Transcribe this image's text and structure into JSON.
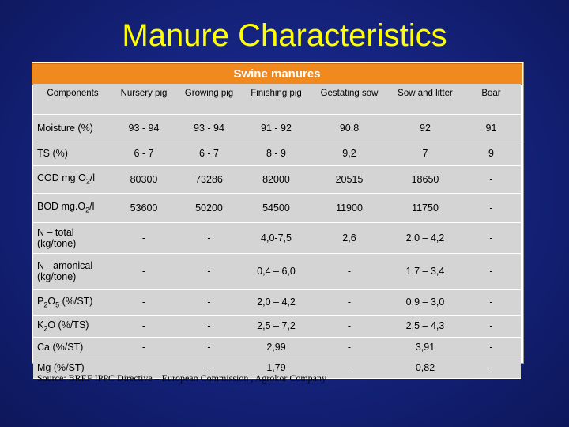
{
  "title": "Manure Characteristics",
  "banner": "Swine manures",
  "columns": [
    "Components",
    "Nursery pig",
    "Growing pig",
    "Finishing pig",
    "Gestating sow",
    "Sow and litter",
    "Boar"
  ],
  "rows": [
    {
      "label": "Moisture (%)",
      "values": [
        "93 - 94",
        "93 - 94",
        "91 - 92",
        "90,8",
        "92",
        "91"
      ]
    },
    {
      "label": "TS (%)",
      "values": [
        "6 - 7",
        "6 - 7",
        "8 - 9",
        "9,2",
        "7",
        "9"
      ]
    },
    {
      "label_parts": [
        "COD mg O",
        "2",
        "/l"
      ],
      "values": [
        "80300",
        "73286",
        "82000",
        "20515",
        "18650",
        "-"
      ]
    },
    {
      "label_parts": [
        "BOD mg.O",
        "2",
        "/l"
      ],
      "values": [
        "53600",
        "50200",
        "54500",
        "11900",
        "11750",
        "-"
      ]
    },
    {
      "label": "N – total (kg/tone)",
      "values": [
        "-",
        "-",
        "4,0-7,5",
        "2,6",
        "2,0 – 4,2",
        "-"
      ]
    },
    {
      "label": "N - amonical (kg/tone)",
      "values": [
        "-",
        "-",
        "0,4 – 6,0",
        "-",
        "1,7 – 3,4",
        "-"
      ]
    },
    {
      "label_parts": [
        "P",
        "2",
        "O",
        "5",
        " (%/ST)"
      ],
      "values": [
        "-",
        "-",
        "2,0 – 4,2",
        "-",
        "0,9 – 3,0",
        "-"
      ]
    },
    {
      "label_parts": [
        "K",
        "2",
        "O (%/TS)"
      ],
      "values": [
        "-",
        "-",
        "2,5 – 7,2",
        "-",
        "2,5 – 4,3",
        "-"
      ]
    },
    {
      "label": "Ca (%/ST)",
      "values": [
        "-",
        "-",
        "2,99",
        "-",
        "3,91",
        "-"
      ]
    },
    {
      "label": "Mg (%/ST)",
      "values": [
        "-",
        "-",
        "1,79",
        "-",
        "0,82",
        "-"
      ]
    }
  ],
  "source": "Source: BREF IPPC Directive – European Commission , Agrokor Company",
  "colors": {
    "background": "#14227a",
    "title": "#ffff00",
    "banner": "#f08a1e",
    "table": "#d4d4d4"
  }
}
